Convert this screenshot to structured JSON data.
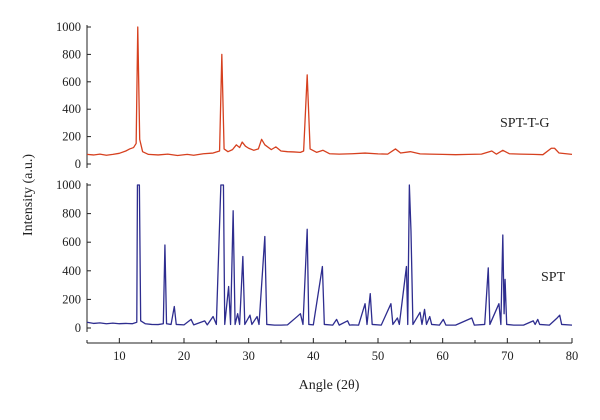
{
  "chart_data": {
    "type": "line",
    "xlabel": "Angle (2θ)",
    "ylabel": "Intensity (a.u.)",
    "xlim": [
      5,
      80
    ],
    "x_ticks": [
      "10",
      "20",
      "30",
      "40",
      "50",
      "60",
      "70",
      "80"
    ],
    "grid": false,
    "legend": "none",
    "panels": [
      {
        "ylim": [
          0,
          1000
        ],
        "y_ticks": [
          "0",
          "200",
          "400",
          "600",
          "800",
          "1000"
        ],
        "series": [
          {
            "name": "SPT-T-G",
            "color": "#d6401f",
            "baseline": 65,
            "points": [
              [
                5,
                70
              ],
              [
                6,
                66
              ],
              [
                7,
                72
              ],
              [
                8,
                64
              ],
              [
                9,
                70
              ],
              [
                10,
                78
              ],
              [
                11,
                95
              ],
              [
                11.6,
                110
              ],
              [
                12.2,
                120
              ],
              [
                12.6,
                150
              ],
              [
                12.85,
                1000
              ],
              [
                13.15,
                180
              ],
              [
                13.6,
                90
              ],
              [
                14.5,
                70
              ],
              [
                16,
                66
              ],
              [
                17.5,
                72
              ],
              [
                19,
                62
              ],
              [
                20.5,
                70
              ],
              [
                21.5,
                64
              ],
              [
                23,
                75
              ],
              [
                24.5,
                80
              ],
              [
                25.5,
                95
              ],
              [
                25.85,
                800
              ],
              [
                26.2,
                110
              ],
              [
                26.8,
                90
              ],
              [
                27.5,
                105
              ],
              [
                28.1,
                140
              ],
              [
                28.6,
                120
              ],
              [
                29,
                160
              ],
              [
                29.5,
                130
              ],
              [
                30,
                115
              ],
              [
                30.8,
                100
              ],
              [
                31.5,
                110
              ],
              [
                32,
                180
              ],
              [
                32.5,
                140
              ],
              [
                33.5,
                105
              ],
              [
                34.2,
                125
              ],
              [
                35,
                95
              ],
              [
                36,
                90
              ],
              [
                37,
                88
              ],
              [
                38,
                85
              ],
              [
                38.5,
                95
              ],
              [
                39.05,
                650
              ],
              [
                39.5,
                110
              ],
              [
                40.5,
                85
              ],
              [
                41.5,
                100
              ],
              [
                42.5,
                75
              ],
              [
                44,
                72
              ],
              [
                46,
                75
              ],
              [
                48,
                80
              ],
              [
                50,
                74
              ],
              [
                51.5,
                72
              ],
              [
                52.7,
                110
              ],
              [
                53.5,
                80
              ],
              [
                55,
                90
              ],
              [
                56.5,
                74
              ],
              [
                58,
                72
              ],
              [
                60,
                70
              ],
              [
                62,
                68
              ],
              [
                64,
                70
              ],
              [
                66,
                72
              ],
              [
                67.6,
                95
              ],
              [
                68.3,
                72
              ],
              [
                69.3,
                100
              ],
              [
                70.3,
                75
              ],
              [
                72,
                72
              ],
              [
                74,
                70
              ],
              [
                75.5,
                68
              ],
              [
                76.8,
                115
              ],
              [
                77.3,
                115
              ],
              [
                78,
                80
              ],
              [
                80,
                70
              ]
            ]
          }
        ]
      },
      {
        "ylim": [
          0,
          1000
        ],
        "y_ticks": [
          "0",
          "200",
          "400",
          "600",
          "800",
          "1000"
        ],
        "series": [
          {
            "name": "SPT",
            "color": "#2e2d8f",
            "baseline": 25,
            "points": [
              [
                5,
                40
              ],
              [
                6,
                32
              ],
              [
                7,
                36
              ],
              [
                8,
                30
              ],
              [
                9,
                34
              ],
              [
                10,
                30
              ],
              [
                11,
                32
              ],
              [
                12,
                30
              ],
              [
                12.7,
                40
              ],
              [
                12.8,
                1000
              ],
              [
                13.1,
                1000
              ],
              [
                13.3,
                50
              ],
              [
                14,
                30
              ],
              [
                15,
                25
              ],
              [
                16,
                24
              ],
              [
                16.8,
                30
              ],
              [
                17.05,
                580
              ],
              [
                17.3,
                30
              ],
              [
                18,
                25
              ],
              [
                18.5,
                150
              ],
              [
                18.8,
                25
              ],
              [
                20,
                22
              ],
              [
                21.1,
                60
              ],
              [
                21.5,
                22
              ],
              [
                23.2,
                50
              ],
              [
                23.6,
                22
              ],
              [
                24.5,
                80
              ],
              [
                25,
                25
              ],
              [
                25.7,
                1000
              ],
              [
                26.1,
                1000
              ],
              [
                26.3,
                25
              ],
              [
                26.9,
                290
              ],
              [
                27.2,
                25
              ],
              [
                27.6,
                820
              ],
              [
                27.9,
                25
              ],
              [
                28.3,
                100
              ],
              [
                28.6,
                25
              ],
              [
                29.1,
                500
              ],
              [
                29.4,
                25
              ],
              [
                30.2,
                90
              ],
              [
                30.5,
                25
              ],
              [
                31.3,
                80
              ],
              [
                31.6,
                25
              ],
              [
                32.5,
                640
              ],
              [
                32.8,
                25
              ],
              [
                34,
                20
              ],
              [
                35,
                20
              ],
              [
                36,
                22
              ],
              [
                37.5,
                80
              ],
              [
                38,
                100
              ],
              [
                38.4,
                25
              ],
              [
                39.05,
                690
              ],
              [
                39.3,
                25
              ],
              [
                40,
                22
              ],
              [
                41.4,
                430
              ],
              [
                41.7,
                25
              ],
              [
                43,
                20
              ],
              [
                43.6,
                60
              ],
              [
                44,
                20
              ],
              [
                45.3,
                50
              ],
              [
                45.6,
                20
              ],
              [
                46,
                22
              ],
              [
                47,
                20
              ],
              [
                48,
                170
              ],
              [
                48.3,
                25
              ],
              [
                48.8,
                240
              ],
              [
                49.1,
                25
              ],
              [
                50.5,
                20
              ],
              [
                52,
                170
              ],
              [
                52.3,
                25
              ],
              [
                53,
                70
              ],
              [
                53.3,
                25
              ],
              [
                54.4,
                430
              ],
              [
                54.6,
                25
              ],
              [
                54.85,
                1000
              ],
              [
                55.1,
                680
              ],
              [
                55.4,
                25
              ],
              [
                56.5,
                110
              ],
              [
                56.8,
                25
              ],
              [
                57.2,
                130
              ],
              [
                57.5,
                25
              ],
              [
                58,
                80
              ],
              [
                58.3,
                25
              ],
              [
                59.5,
                20
              ],
              [
                60.1,
                60
              ],
              [
                60.5,
                20
              ],
              [
                62,
                20
              ],
              [
                64.5,
                70
              ],
              [
                64.9,
                20
              ],
              [
                66.5,
                25
              ],
              [
                67.05,
                420
              ],
              [
                67.3,
                25
              ],
              [
                68.7,
                170
              ],
              [
                69,
                25
              ],
              [
                69.3,
                650
              ],
              [
                69.5,
                100
              ],
              [
                69.65,
                340
              ],
              [
                69.9,
                25
              ],
              [
                71,
                20
              ],
              [
                72.5,
                20
              ],
              [
                74,
                50
              ],
              [
                74.3,
                25
              ],
              [
                74.7,
                60
              ],
              [
                75,
                25
              ],
              [
                76.5,
                20
              ],
              [
                77.7,
                70
              ],
              [
                78.1,
                90
              ],
              [
                78.4,
                25
              ],
              [
                80,
                20
              ]
            ]
          }
        ]
      }
    ]
  }
}
